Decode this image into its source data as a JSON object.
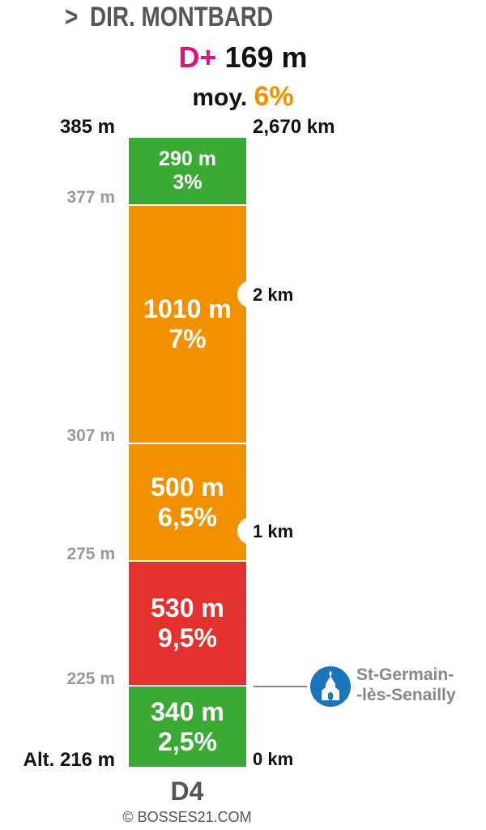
{
  "header": {
    "chevron": ">",
    "direction": "DIR. MONTBARD",
    "dplus_label": "D+",
    "dplus_value": "169 m",
    "avg_label": "moy.",
    "avg_value": "6%"
  },
  "top": {
    "altitude": "385 m",
    "distance": "2,670 km"
  },
  "segments": [
    {
      "length": "290 m",
      "grade": "3%",
      "color": "#3aaa35",
      "alt_start": 377,
      "alt_end": 385
    },
    {
      "length": "1010 m",
      "grade": "7%",
      "color": "#f29100",
      "alt_start": 307,
      "alt_end": 377
    },
    {
      "length": "500 m",
      "grade": "6,5%",
      "color": "#f29100",
      "alt_start": 275,
      "alt_end": 307
    },
    {
      "length": "530 m",
      "grade": "9,5%",
      "color": "#e3312d",
      "alt_start": 225,
      "alt_end": 275
    },
    {
      "length": "340 m",
      "grade": "2,5%",
      "color": "#3aaa35",
      "alt_start": 216,
      "alt_end": 225
    }
  ],
  "altitude_labels": [
    "377 m",
    "307 m",
    "275 m",
    "225 m"
  ],
  "km_markers": [
    "2 km",
    "1 km"
  ],
  "bottom": {
    "altitude": "Alt. 216 m",
    "distance": "0 km"
  },
  "village": {
    "line1": "St-Germain-",
    "line2": "-lès-Senailly",
    "icon": "church-icon",
    "color": "#1b75bb"
  },
  "road": "D4",
  "credit": "© BOSSES21.COM"
}
